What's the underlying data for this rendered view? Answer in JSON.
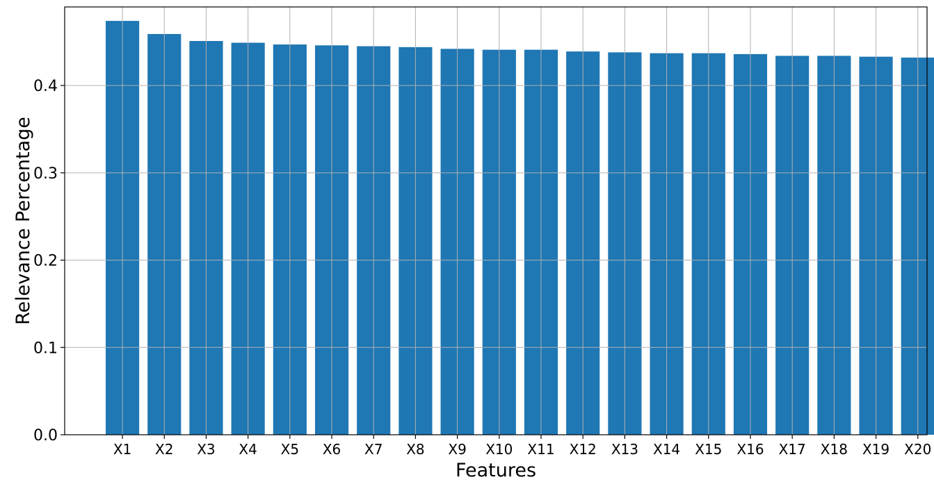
{
  "chart_data": {
    "type": "bar",
    "title": "",
    "xlabel": "Features",
    "ylabel": "Relevance Percentage",
    "categories": [
      "X1",
      "X2",
      "X3",
      "X4",
      "X5",
      "X6",
      "X7",
      "X8",
      "X9",
      "X10",
      "X11",
      "X12",
      "X13",
      "X14",
      "X15",
      "X16",
      "X17",
      "X18",
      "X19",
      "X20"
    ],
    "values": [
      0.474,
      0.459,
      0.451,
      0.449,
      0.447,
      0.446,
      0.445,
      0.444,
      0.442,
      0.441,
      0.441,
      0.439,
      0.438,
      0.437,
      0.437,
      0.436,
      0.434,
      0.434,
      0.433,
      0.432
    ],
    "ylim": [
      0.0,
      0.49
    ],
    "yticks": [
      0.0,
      0.1,
      0.2,
      0.3,
      0.4
    ],
    "ytick_labels": [
      "0.0",
      "0.1",
      "0.2",
      "0.3",
      "0.4"
    ],
    "grid": true,
    "bar_color": "#1f77b4",
    "grid_color": "#b0b0b0"
  }
}
